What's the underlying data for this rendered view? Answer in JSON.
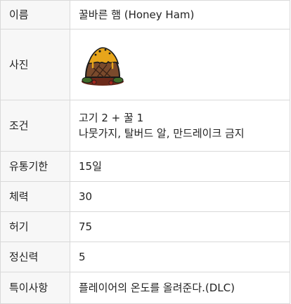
{
  "rows": {
    "name": {
      "label": "이름",
      "value": "꿀바른 햄 (Honey Ham)"
    },
    "photo": {
      "label": "사진",
      "image_icon": "honey-ham-food-icon"
    },
    "conditions": {
      "label": "조건",
      "line1": "고기 2 + 꿀 1",
      "line2": "나뭇가지, 탈버드 알, 만드레이크 금지"
    },
    "shelf_life": {
      "label": "유통기한",
      "value": "15일"
    },
    "health": {
      "label": "체력",
      "value": "30"
    },
    "hunger": {
      "label": "허기",
      "value": "75"
    },
    "sanity": {
      "label": "정신력",
      "value": "5"
    },
    "special": {
      "label": "특이사항",
      "value": "플레이어의 온도를 올려준다.(DLC)"
    }
  }
}
